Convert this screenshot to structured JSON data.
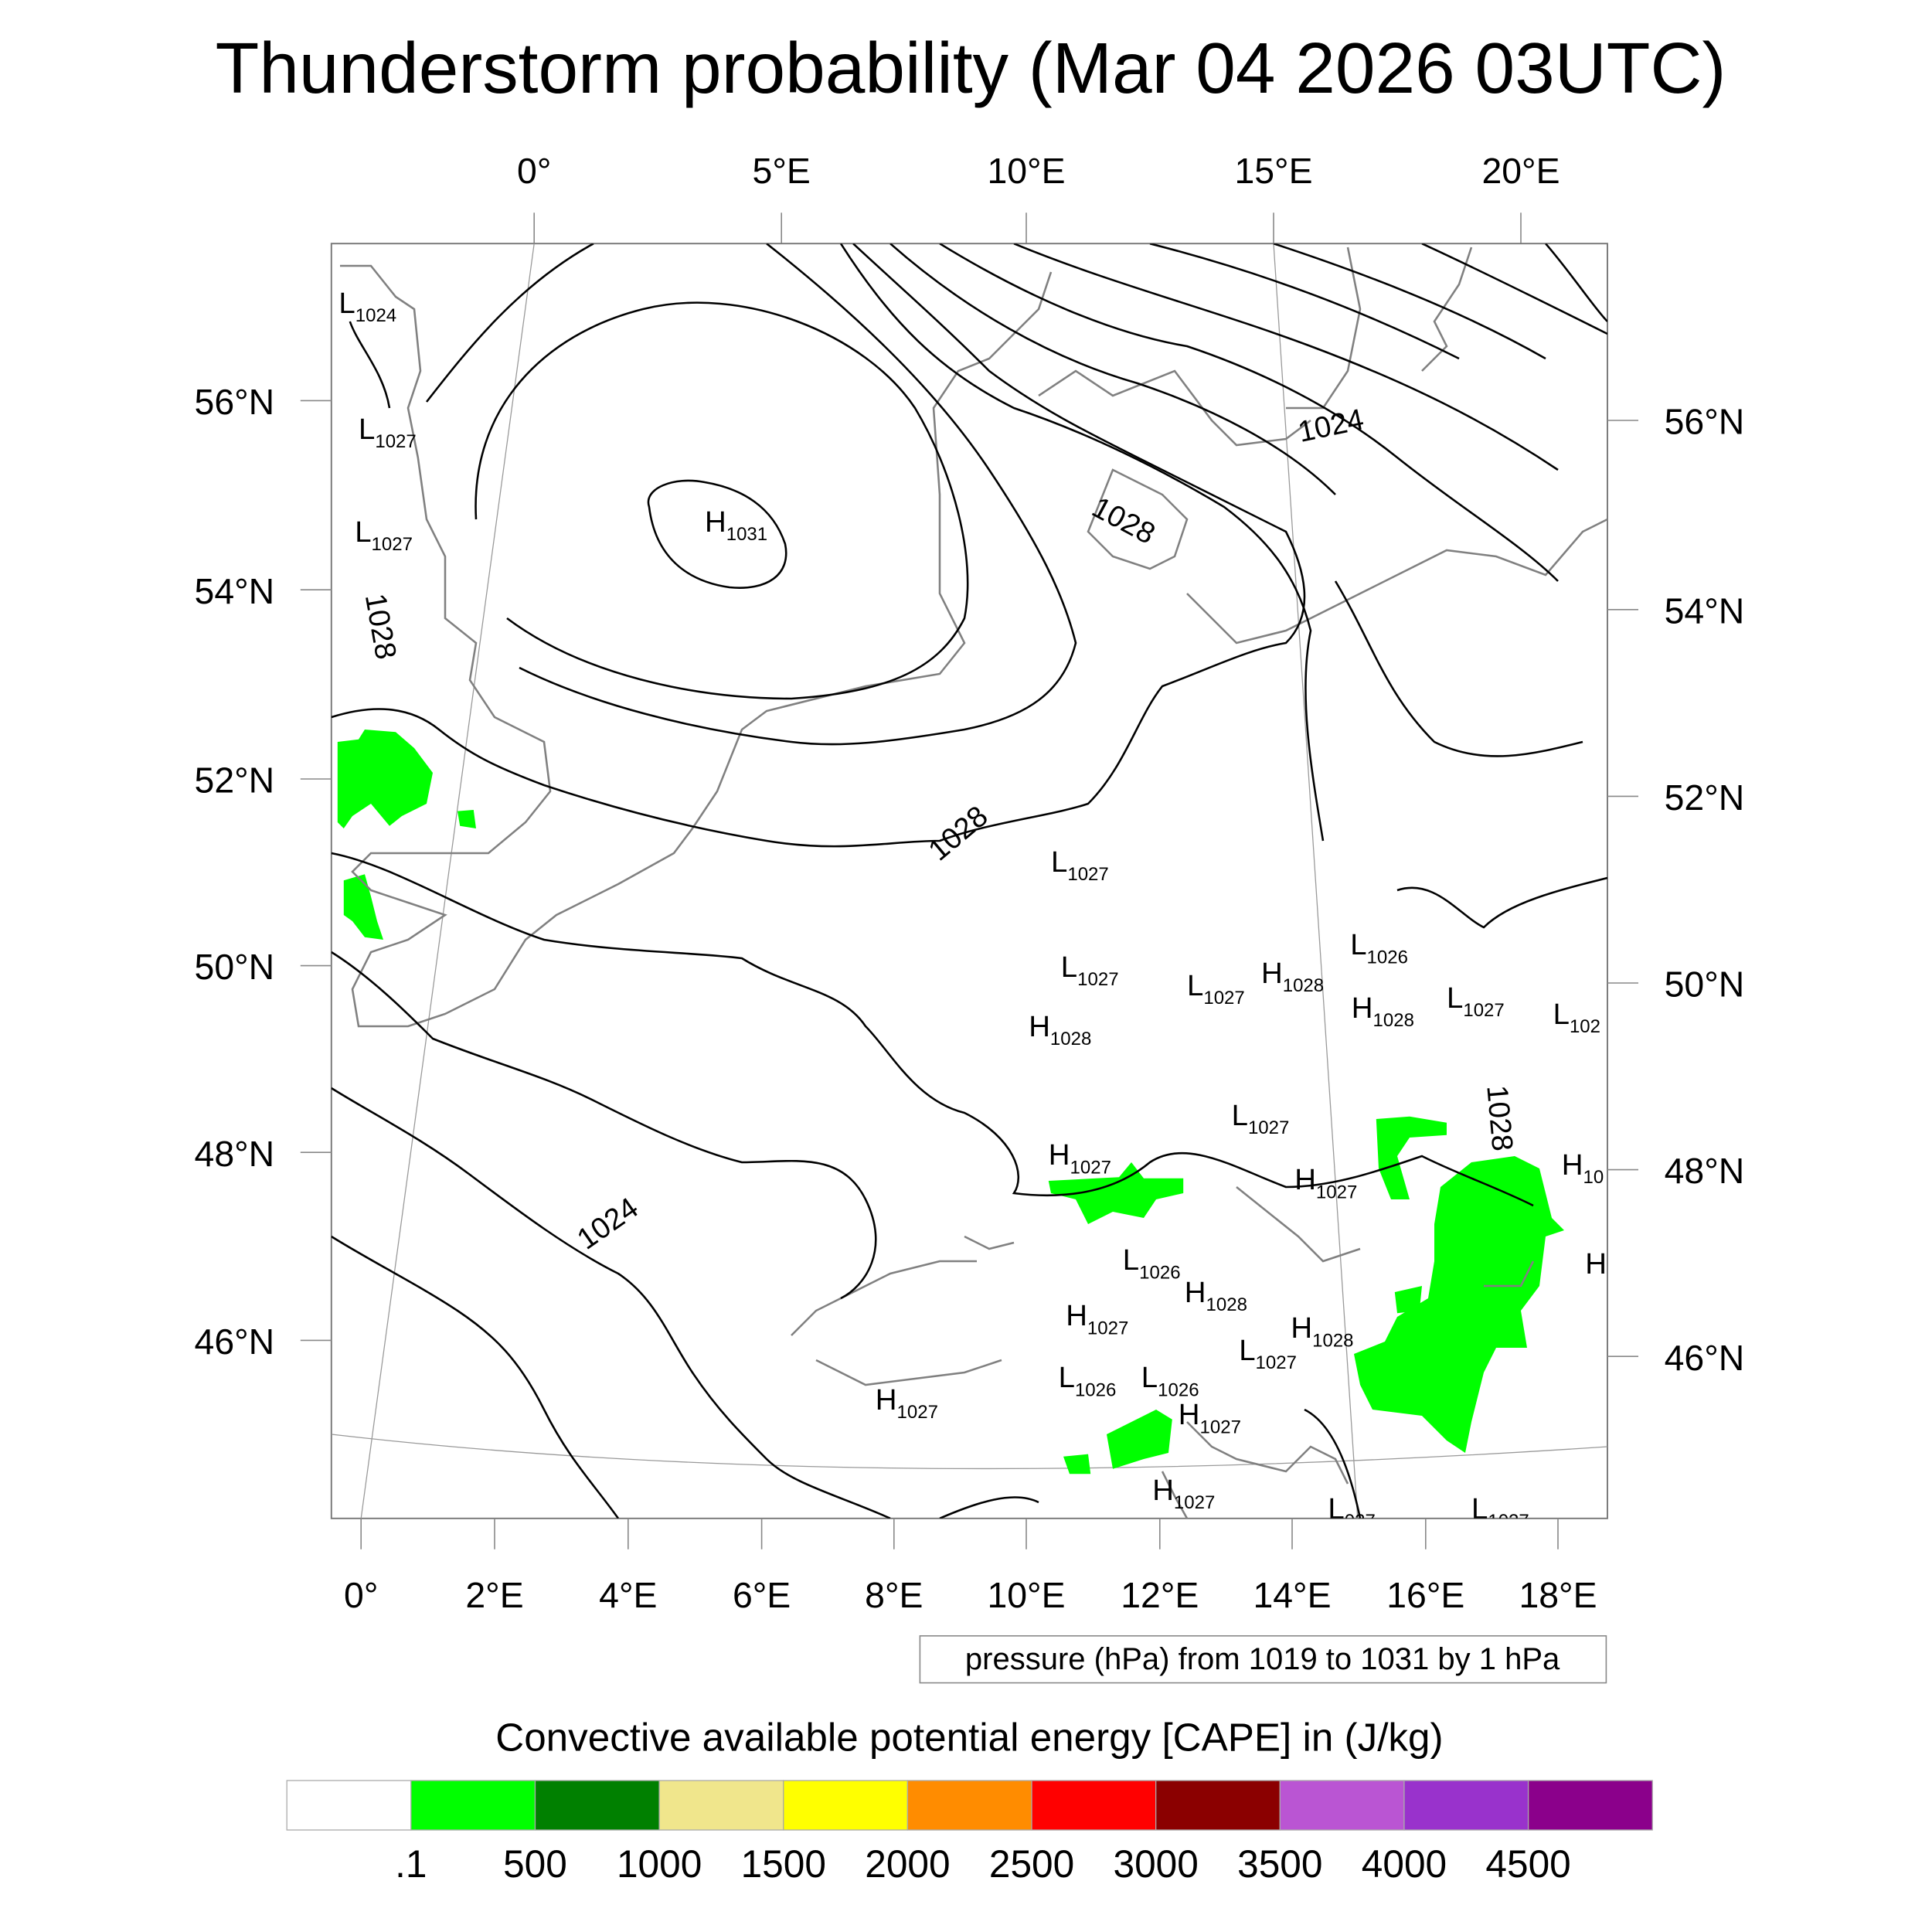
{
  "title": "Thunderstorm probability (Mar 04 2026 03UTC)",
  "chart_data": {
    "type": "heatmap",
    "title": "Thunderstorm probability (Mar 04 2026 03UTC)",
    "top_lon_ticks": [
      "0°",
      "5°E",
      "10°E",
      "15°E",
      "20°E"
    ],
    "bottom_lon_ticks": [
      "0°",
      "2°E",
      "4°E",
      "6°E",
      "8°E",
      "10°E",
      "12°E",
      "14°E",
      "16°E",
      "18°E"
    ],
    "left_lat_ticks": [
      "56°N",
      "54°N",
      "52°N",
      "50°N",
      "48°N",
      "46°N"
    ],
    "right_lat_ticks": [
      "56°N",
      "54°N",
      "52°N",
      "50°N",
      "48°N",
      "46°N"
    ],
    "contour_info": "pressure (hPa) from 1019 to 1031 by 1 hPa",
    "contour_labels": [
      "1024",
      "1028",
      "1028",
      "1028",
      "1024",
      "1028",
      "1024"
    ],
    "pressure_centers": [
      {
        "type": "L",
        "value": "1024"
      },
      {
        "type": "L",
        "value": "1027"
      },
      {
        "type": "L",
        "value": "1027"
      },
      {
        "type": "H",
        "value": "1031"
      },
      {
        "type": "L",
        "value": "1027"
      },
      {
        "type": "L",
        "value": "1026"
      },
      {
        "type": "L",
        "value": "1027"
      },
      {
        "type": "L",
        "value": "1027"
      },
      {
        "type": "H",
        "value": "1028"
      },
      {
        "type": "H",
        "value": "1028"
      },
      {
        "type": "H",
        "value": "1028"
      },
      {
        "type": "L",
        "value": "1027"
      },
      {
        "type": "L",
        "value": "102"
      },
      {
        "type": "L",
        "value": "1027"
      },
      {
        "type": "H",
        "value": "1027"
      },
      {
        "type": "H",
        "value": "1027"
      },
      {
        "type": "H",
        "value": "10"
      },
      {
        "type": "L",
        "value": "1026"
      },
      {
        "type": "H",
        "value": "1028"
      },
      {
        "type": "H",
        "value": "1027"
      },
      {
        "type": "H",
        "value": "1028"
      },
      {
        "type": "L",
        "value": "1027"
      },
      {
        "type": "L",
        "value": "1026"
      },
      {
        "type": "L",
        "value": "1026"
      },
      {
        "type": "H",
        "value": "1027"
      },
      {
        "type": "H",
        "value": "1027"
      },
      {
        "type": "H",
        "value": "1027"
      },
      {
        "type": "L",
        "value": "027"
      },
      {
        "type": "L",
        "value": "1027"
      },
      {
        "type": "H",
        "value": ""
      }
    ],
    "colorbar": {
      "title": "Convective available potential energy [CAPE] in (J/kg)",
      "labels": [
        ".1",
        "500",
        "1000",
        "1500",
        "2000",
        "2500",
        "3000",
        "3500",
        "4000",
        "4500"
      ],
      "colors": [
        "#ffffff",
        "#00ff00",
        "#008000",
        "#f0e68c",
        "#ffff00",
        "#ff8c00",
        "#ff0000",
        "#8b0000",
        "#ba55d3",
        "#9932cc",
        "#8b008b"
      ]
    },
    "cape_regions_color": "#00ff00"
  }
}
